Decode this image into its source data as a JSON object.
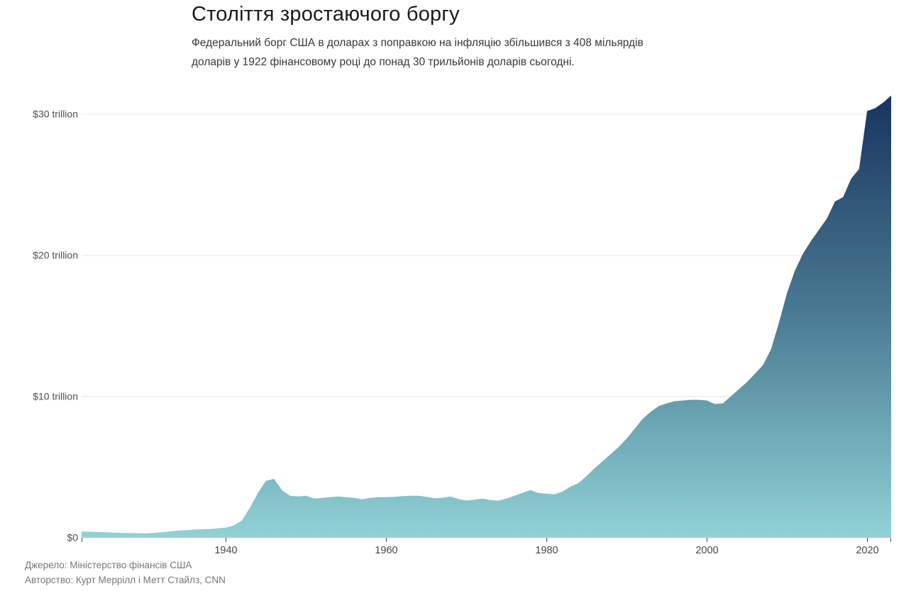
{
  "header": {
    "title": "Століття зростаючого боргу",
    "subtitle_lines": [
      "Федеральний борг США в доларах з поправкою на інфляцію збільшився з 408 мільярдів",
      "доларів у 1922 фінансовому році до понад 30 трильйонів доларів сьогодні."
    ]
  },
  "footer": {
    "source": "Джерело: Міністерство фінансів США",
    "credit": "Авторство: Курт Меррілл і Метт Стайлз, CNN"
  },
  "chart_data": {
    "type": "area",
    "title": "Століття зростаючого боргу",
    "xlabel": "",
    "ylabel": "",
    "x_range": [
      1922,
      2023
    ],
    "ylim": [
      0,
      32
    ],
    "grid": "horizontal",
    "legend": "none",
    "x_ticks": [
      1940,
      1960,
      1980,
      2000,
      2020
    ],
    "y_ticks": [
      {
        "value": 0,
        "label": "$0"
      },
      {
        "value": 10,
        "label": "$10 trillion"
      },
      {
        "value": 20,
        "label": "$20 trillion"
      },
      {
        "value": 30,
        "label": "$30 trillion"
      }
    ],
    "colors": {
      "gradient_top": "#18335e",
      "gradient_mid": "#4a7b93",
      "gradient_bottom": "#90d2d6",
      "gridline": "#e7e7e7",
      "baseline": "#c4c4c4",
      "tick": "#5a5a5a"
    },
    "points": [
      [
        1922,
        0.41
      ],
      [
        1923,
        0.4
      ],
      [
        1924,
        0.38
      ],
      [
        1925,
        0.36
      ],
      [
        1926,
        0.34
      ],
      [
        1927,
        0.32
      ],
      [
        1928,
        0.31
      ],
      [
        1929,
        0.3
      ],
      [
        1930,
        0.29
      ],
      [
        1931,
        0.32
      ],
      [
        1932,
        0.37
      ],
      [
        1933,
        0.42
      ],
      [
        1934,
        0.48
      ],
      [
        1935,
        0.52
      ],
      [
        1936,
        0.56
      ],
      [
        1937,
        0.58
      ],
      [
        1938,
        0.6
      ],
      [
        1939,
        0.65
      ],
      [
        1940,
        0.7
      ],
      [
        1941,
        0.85
      ],
      [
        1942,
        1.2
      ],
      [
        1943,
        2.1
      ],
      [
        1944,
        3.15
      ],
      [
        1945,
        4.0
      ],
      [
        1946,
        4.15
      ],
      [
        1947,
        3.35
      ],
      [
        1948,
        2.95
      ],
      [
        1949,
        2.9
      ],
      [
        1950,
        2.95
      ],
      [
        1951,
        2.75
      ],
      [
        1952,
        2.8
      ],
      [
        1953,
        2.85
      ],
      [
        1954,
        2.9
      ],
      [
        1955,
        2.85
      ],
      [
        1956,
        2.8
      ],
      [
        1957,
        2.7
      ],
      [
        1958,
        2.8
      ],
      [
        1959,
        2.85
      ],
      [
        1960,
        2.85
      ],
      [
        1961,
        2.88
      ],
      [
        1962,
        2.92
      ],
      [
        1963,
        2.95
      ],
      [
        1964,
        2.95
      ],
      [
        1965,
        2.88
      ],
      [
        1966,
        2.78
      ],
      [
        1967,
        2.8
      ],
      [
        1968,
        2.9
      ],
      [
        1969,
        2.72
      ],
      [
        1970,
        2.62
      ],
      [
        1971,
        2.68
      ],
      [
        1972,
        2.75
      ],
      [
        1973,
        2.65
      ],
      [
        1974,
        2.6
      ],
      [
        1975,
        2.75
      ],
      [
        1976,
        2.95
      ],
      [
        1977,
        3.15
      ],
      [
        1978,
        3.35
      ],
      [
        1979,
        3.15
      ],
      [
        1980,
        3.1
      ],
      [
        1981,
        3.05
      ],
      [
        1982,
        3.25
      ],
      [
        1983,
        3.6
      ],
      [
        1984,
        3.85
      ],
      [
        1985,
        4.35
      ],
      [
        1986,
        4.9
      ],
      [
        1987,
        5.4
      ],
      [
        1988,
        5.9
      ],
      [
        1989,
        6.4
      ],
      [
        1990,
        7.0
      ],
      [
        1991,
        7.7
      ],
      [
        1992,
        8.4
      ],
      [
        1993,
        8.9
      ],
      [
        1994,
        9.3
      ],
      [
        1995,
        9.5
      ],
      [
        1996,
        9.65
      ],
      [
        1997,
        9.7
      ],
      [
        1998,
        9.75
      ],
      [
        1999,
        9.75
      ],
      [
        2000,
        9.7
      ],
      [
        2001,
        9.45
      ],
      [
        2002,
        9.5
      ],
      [
        2003,
        10.0
      ],
      [
        2004,
        10.5
      ],
      [
        2005,
        11.0
      ],
      [
        2006,
        11.6
      ],
      [
        2007,
        12.2
      ],
      [
        2008,
        13.3
      ],
      [
        2009,
        15.2
      ],
      [
        2010,
        17.3
      ],
      [
        2011,
        18.9
      ],
      [
        2012,
        20.1
      ],
      [
        2013,
        21.0
      ],
      [
        2014,
        21.8
      ],
      [
        2015,
        22.6
      ],
      [
        2016,
        23.8
      ],
      [
        2017,
        24.1
      ],
      [
        2018,
        25.4
      ],
      [
        2019,
        26.1
      ],
      [
        2020,
        30.2
      ],
      [
        2021,
        30.4
      ],
      [
        2022,
        30.8
      ],
      [
        2023,
        31.3
      ]
    ]
  }
}
